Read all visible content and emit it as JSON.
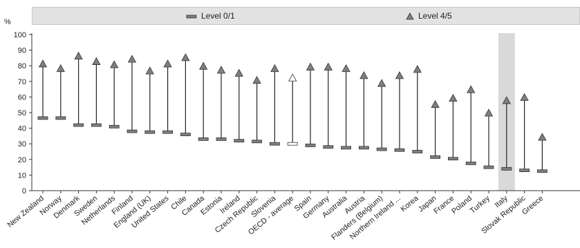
{
  "legend": {
    "level01": "Level 0/1",
    "level45": "Level 4/5"
  },
  "colors": {
    "legend_bg": "#e2e2e2",
    "marker": "#7f7f7f",
    "highlight_band": "#d9d9d9",
    "axis": "#333333"
  },
  "chart_data": {
    "type": "dot-range",
    "ylabel": "%",
    "ylim": [
      0,
      100
    ],
    "yticks": [
      0,
      10,
      20,
      30,
      40,
      50,
      60,
      70,
      80,
      90,
      100
    ],
    "grid": false,
    "legend_position": "top",
    "highlighted_category": "Italy",
    "categories": [
      "New Zealand",
      "Norway",
      "Denmark",
      "Sweden",
      "Netherlands",
      "Finland",
      "England (UK)",
      "United States",
      "Chile",
      "Canada",
      "Estonia",
      "Ireland",
      "Czech Republic",
      "Slovenia",
      "OECD - average",
      "Spain",
      "Germany",
      "Australia",
      "Austria",
      "Flanders (Belgium)",
      "Northern Ireland ...",
      "Korea",
      "Japan",
      "France",
      "Poland",
      "Turkey",
      "Italy",
      "Slovak Republic",
      "Greece"
    ],
    "series": [
      {
        "name": "Level 0/1",
        "marker": "bar",
        "values": [
          46.5,
          46.5,
          42,
          42,
          41,
          38,
          37.5,
          37.5,
          36,
          33,
          33,
          32,
          31.5,
          30,
          30,
          29,
          28,
          27.5,
          27.5,
          26.5,
          26,
          25,
          21.5,
          20.5,
          17.5,
          15,
          14,
          13,
          12.5
        ]
      },
      {
        "name": "Level 4/5",
        "marker": "triangle",
        "values": [
          81,
          78,
          86,
          82.5,
          80.5,
          84,
          76.5,
          81,
          85,
          79.5,
          77,
          75,
          70.5,
          78,
          72,
          79,
          79,
          78,
          73.5,
          68.5,
          73.5,
          77.5,
          55,
          59,
          64.5,
          49.5,
          57.5,
          59.5,
          34
        ]
      }
    ]
  }
}
